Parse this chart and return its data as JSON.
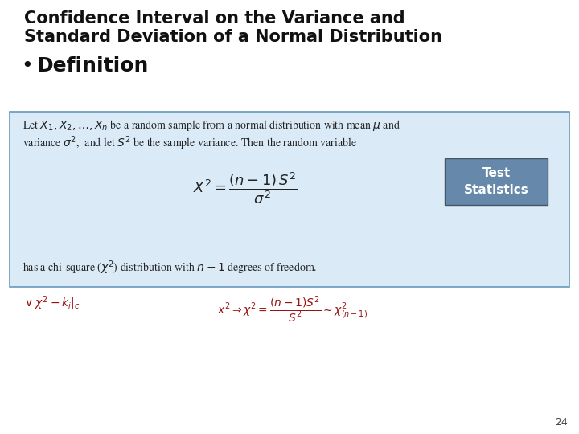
{
  "title_line1": "Confidence Interval on the Variance and",
  "title_line2": "Standard Deviation of a Normal Distribution",
  "bullet": "•",
  "bullet_text": "Definition",
  "box_bg_color": "#daeaf7",
  "box_border_color": "#6699bb",
  "body_text_line1": "Let $X_1, X_2,\\ldots, X_n$ be a random sample from a normal distribution with mean $\\mu$ and",
  "body_text_line2": "variance $\\sigma^2$,  and let $S^2$ be the sample variance. Then the random variable",
  "formula": "$X^2 = \\dfrac{(n-1)\\,S^2}{\\sigma^2}$",
  "body_text_line3": "has a chi-square ($\\chi^2$) distribution with $n - 1$ degrees of freedom.",
  "test_stat_bg": "#6688aa",
  "test_stat_text": "Test\nStatistics",
  "page_number": "24",
  "handwriting_color": "#991111",
  "slide_bg": "#ffffff",
  "title_fontsize": 15,
  "bullet_fontsize": 18,
  "body_fontsize": 10,
  "formula_fontsize": 13
}
